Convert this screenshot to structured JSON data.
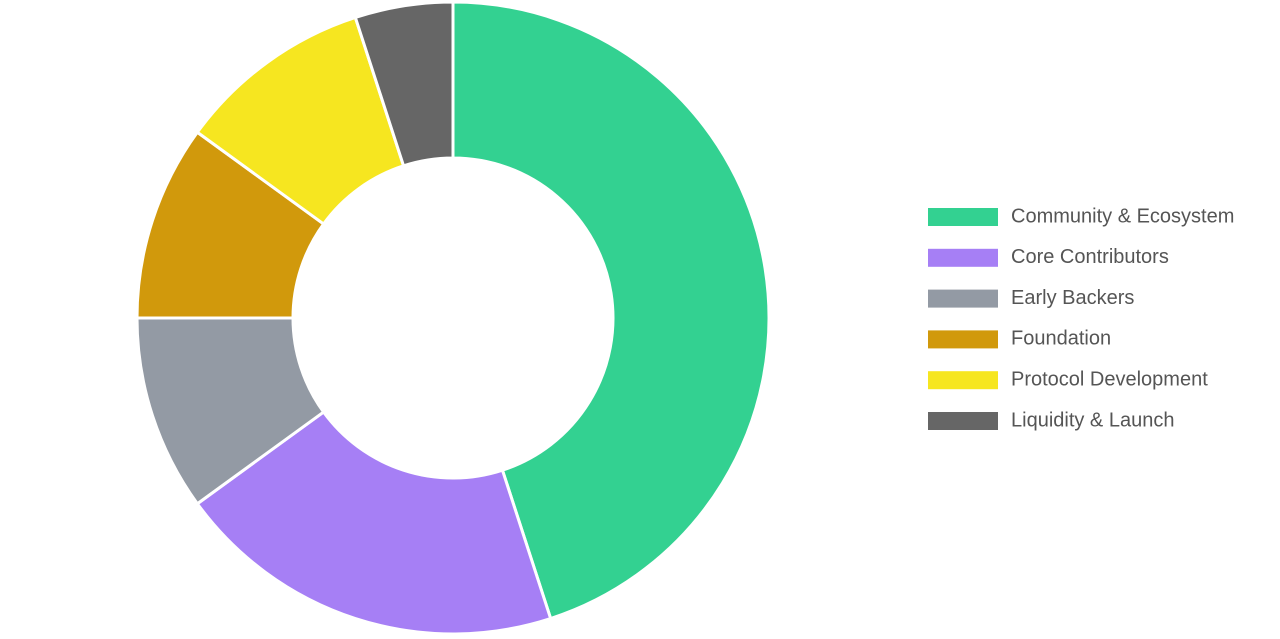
{
  "chart_data": {
    "type": "donut",
    "categories": [
      "Community & Ecosystem",
      "Core Contributors",
      "Early Backers",
      "Foundation",
      "Protocol Development",
      "Liquidity & Launch"
    ],
    "values": [
      45,
      20,
      10,
      10,
      10,
      5
    ],
    "colors": [
      "#33d191",
      "#a67ff5",
      "#939aa4",
      "#d1990c",
      "#f6e620",
      "#666666"
    ],
    "legend": "right"
  }
}
